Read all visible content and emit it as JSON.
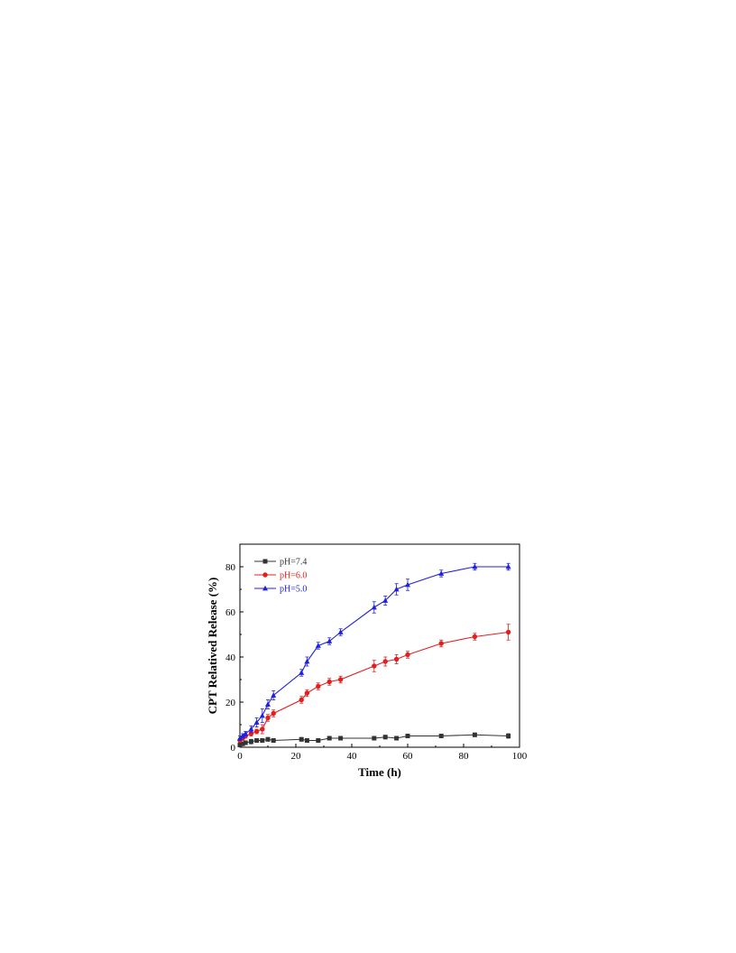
{
  "chart_data": {
    "type": "line",
    "xlabel": "Time (h)",
    "ylabel": "CPT Relatived Release (%)",
    "xlim": [
      0,
      100
    ],
    "ylim": [
      0,
      90
    ],
    "x_ticks": [
      0,
      20,
      40,
      60,
      80,
      100
    ],
    "y_ticks": [
      0,
      20,
      40,
      60,
      80
    ],
    "grid": false,
    "legend_position": "top-left",
    "series": [
      {
        "name": "pH=7.4",
        "color": "#333333",
        "marker": "square",
        "x": [
          0,
          1,
          2,
          4,
          6,
          8,
          10,
          12,
          22,
          24,
          28,
          32,
          36,
          48,
          52,
          56,
          60,
          72,
          84,
          96
        ],
        "y": [
          1,
          1.5,
          2,
          2.5,
          3,
          3,
          3.5,
          3,
          3.5,
          3,
          3,
          4,
          4,
          4,
          4.5,
          4,
          5,
          5,
          5.5,
          5
        ],
        "error": [
          0.5,
          0.5,
          0.8,
          1,
          0.8,
          0.8,
          0.8,
          0.8,
          0.8,
          0.8,
          0.8,
          0.8,
          0.8,
          0.8,
          0.8,
          0.8,
          0.8,
          0.8,
          0.8,
          1
        ]
      },
      {
        "name": "pH=6.0",
        "color": "#e02020",
        "marker": "circle",
        "x": [
          0,
          1,
          2,
          4,
          6,
          8,
          10,
          12,
          22,
          24,
          28,
          32,
          36,
          48,
          52,
          56,
          60,
          72,
          84,
          96
        ],
        "y": [
          3,
          4,
          5,
          6,
          7,
          8,
          13,
          15,
          21,
          24,
          27,
          29,
          30,
          36,
          38,
          39,
          41,
          46,
          49,
          51
        ],
        "error": [
          0.8,
          0.8,
          1,
          1,
          1,
          2,
          1.5,
          1.5,
          1.5,
          1.5,
          1.5,
          1.5,
          1.5,
          2.5,
          2,
          2,
          1.5,
          1.5,
          1.5,
          3.5
        ]
      },
      {
        "name": "pH=5.0",
        "color": "#2020e0",
        "marker": "triangle",
        "x": [
          0,
          1,
          2,
          4,
          6,
          8,
          10,
          12,
          22,
          24,
          28,
          32,
          36,
          48,
          52,
          56,
          60,
          72,
          84,
          96
        ],
        "y": [
          4,
          5,
          6,
          8,
          11,
          14,
          19,
          23,
          33,
          38,
          45,
          47,
          51,
          62,
          65,
          70,
          72,
          77,
          80,
          80
        ],
        "error": [
          1,
          1,
          1,
          1.5,
          2,
          3,
          2,
          2,
          1.5,
          2,
          1.5,
          1.5,
          1.5,
          2.5,
          2,
          2.5,
          2.5,
          1.5,
          1.5,
          1.5
        ]
      }
    ]
  }
}
